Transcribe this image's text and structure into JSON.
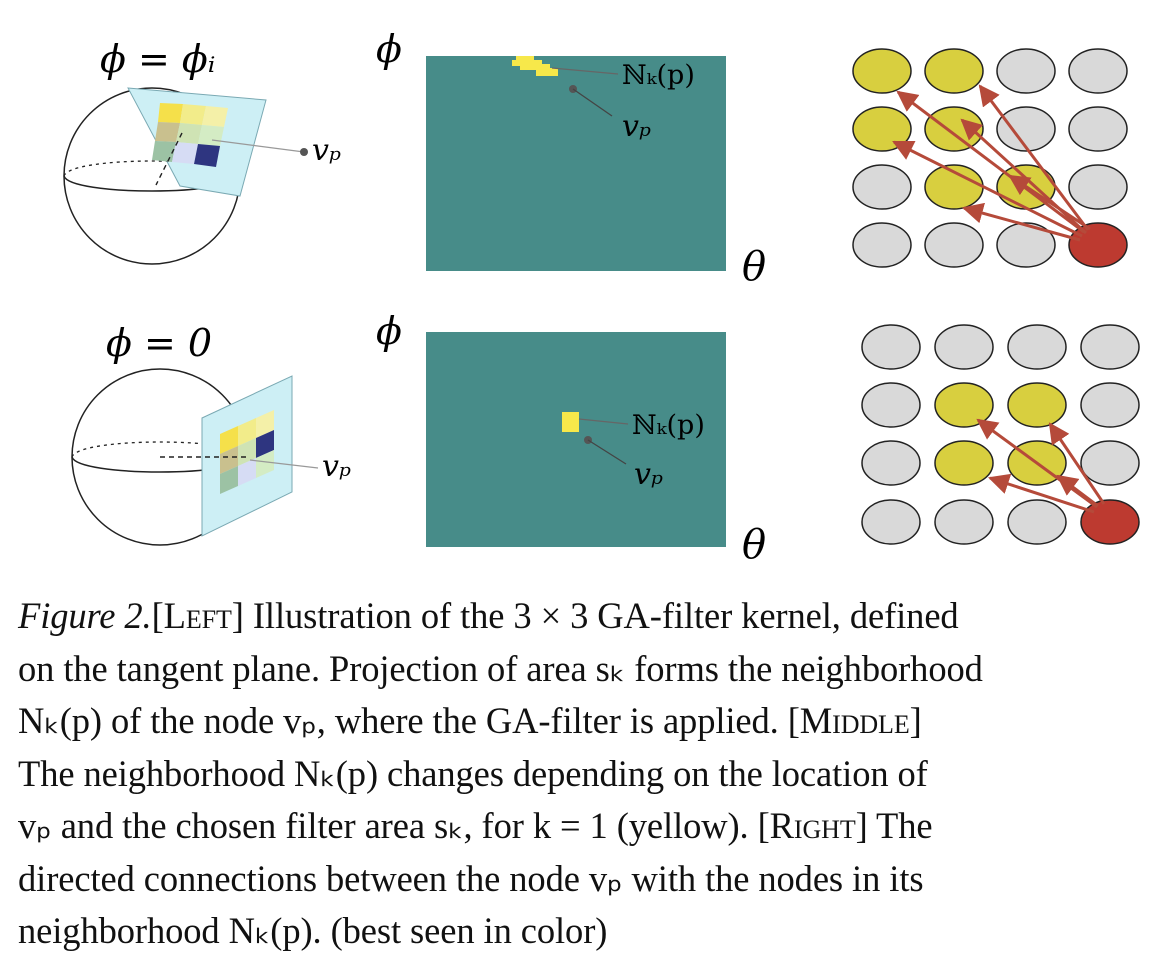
{
  "labels": {
    "phi_eq_phi_i": "ϕ = ϕᵢ",
    "phi_eq_zero": "ϕ = 0",
    "phi": "ϕ",
    "theta": "θ",
    "v_p": "vₚ",
    "N_k_p": "ℕₖ(p)"
  },
  "colors": {
    "teal_map": "#478c89",
    "yellow_patch": "#f7e84a",
    "node_yellow": "#d8cf3f",
    "node_grey": "#d9d9d9",
    "node_red": "#bd3a30",
    "arrow": "#b54a3a",
    "plane": "#cdeff5"
  },
  "caption": {
    "figure_label": "Figure 2.",
    "left_tag": "[Left]",
    "middle_tag": "[Middle]",
    "right_tag": "[Right]",
    "lines": [
      " Illustration of the 3 × 3 GA-filter kernel, defined",
      "on the tangent plane. Projection of area sₖ forms the neighborhood",
      "Nₖ(p) of the node vₚ, where the GA-filter is applied. ",
      "The neighborhood Nₖ(p) changes depending on the location of",
      "vₚ and the chosen filter area sₖ, for k = 1 (yellow). ",
      " The",
      "directed connections between the node vₚ with the nodes in its",
      "neighborhood Nₖ(p). (best seen in color)"
    ]
  }
}
